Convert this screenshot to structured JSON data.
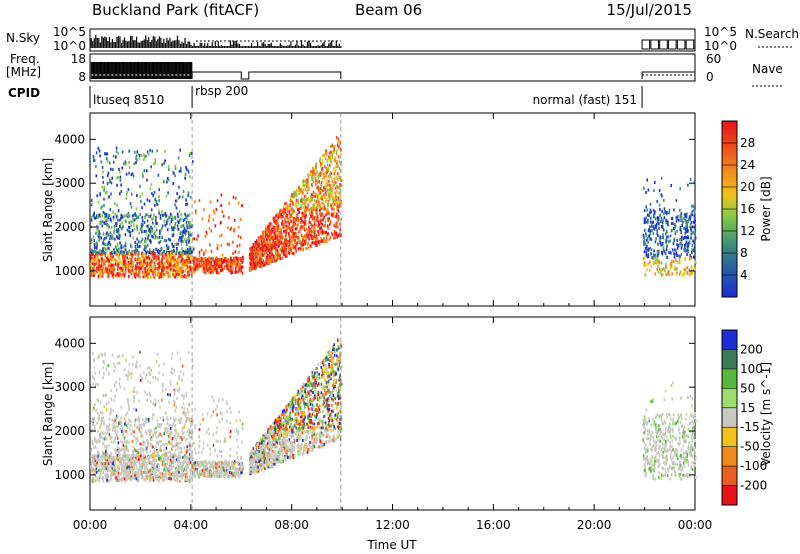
{
  "header": {
    "station": "Buckland Park (fitACF)",
    "beam": "Beam 06",
    "date": "15/Jul/2015"
  },
  "side_labels": {
    "nsky": "N.Sky",
    "freq_line1": "Freq.",
    "freq_line2": "[MHz]",
    "cpid": "CPID",
    "nsearch": "N.Search",
    "nave": "Nave"
  },
  "small_axes": {
    "noise_left_ticks": [
      "10^5",
      "10^0"
    ],
    "noise_right_ticks": [
      "10^5",
      "10^0"
    ],
    "freq_left_ticks": [
      "18",
      "8"
    ],
    "freq_right_ticks": [
      "60",
      "0"
    ]
  },
  "cpid_segments": [
    {
      "label": "ltuseq 8510",
      "start_hour": 0,
      "end_hour": 4.05
    },
    {
      "label": "rbsp 200",
      "start_hour": 4.05,
      "end_hour": 9.95
    },
    {
      "label": "normal (fast) 151",
      "start_hour": 21.9,
      "end_hour": 24
    }
  ],
  "chart_data": [
    {
      "type": "heatmap",
      "quantity": "power",
      "ylabel": "Slant Range [km]",
      "ylim": [
        200,
        4600
      ],
      "yticks": [
        "1000",
        "2000",
        "3000",
        "4000"
      ],
      "colorbar_label": "Power [dB]",
      "colorbar_ticks": [
        "4",
        "8",
        "12",
        "16",
        "20",
        "24",
        "28"
      ],
      "colorbar_range": [
        0,
        32
      ],
      "colors": [
        "#1b2fd6",
        "#2558a8",
        "#3e8e78",
        "#7ec84a",
        "#f2c21a",
        "#f2891c",
        "#f04a18",
        "#e8121a"
      ],
      "data_intervals_hours": [
        [
          0,
          9.95
        ],
        [
          21.9,
          24
        ]
      ]
    },
    {
      "type": "heatmap",
      "quantity": "velocity",
      "ylabel": "Slant Range [km]",
      "ylim": [
        200,
        4600
      ],
      "yticks": [
        "1000",
        "2000",
        "3000",
        "4000"
      ],
      "colorbar_label": "Velocity [m s^-1]",
      "colorbar_ticks": [
        "200",
        "100",
        "50",
        "15",
        "-15",
        "-50",
        "-100",
        "-200"
      ],
      "colors": [
        "#1b2fd6",
        "#3e7a5a",
        "#56b83c",
        "#9be06a",
        "#c8c8c0",
        "#f2c21a",
        "#f2891c",
        "#e86020",
        "#e8121a"
      ],
      "data_intervals_hours": [
        [
          0,
          9.95
        ],
        [
          21.9,
          24
        ]
      ]
    }
  ],
  "time_axis": {
    "xlabel": "Time UT",
    "xlim_hours": [
      0,
      24
    ],
    "ticks": [
      "00:00",
      "04:00",
      "08:00",
      "12:00",
      "16:00",
      "20:00",
      "00:00"
    ]
  }
}
